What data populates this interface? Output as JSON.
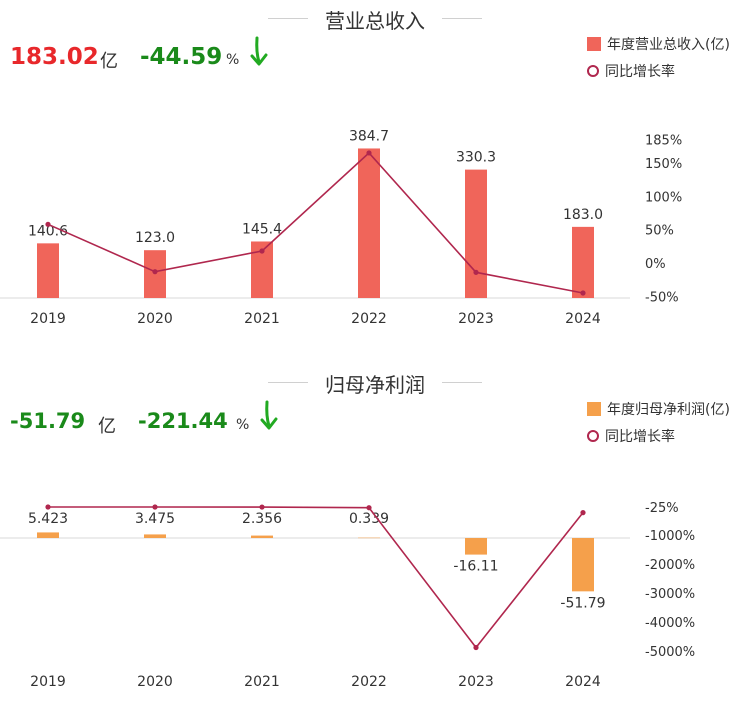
{
  "revenue_section": {
    "title": "营业总收入",
    "kpi_value": "183.02",
    "kpi_unit": "亿",
    "kpi_change": "-44.59",
    "kpi_change_unit": "%",
    "legend_bar": "年度营业总收入(亿)",
    "legend_line": "同比增长率"
  },
  "profit_section": {
    "title": "归母净利润",
    "kpi_value": "-51.79",
    "kpi_unit": "亿",
    "kpi_change": "-221.44",
    "kpi_change_unit": "%",
    "legend_bar": "年度归母净利润(亿)",
    "legend_line": "同比增长率"
  },
  "colors": {
    "revenue_bar": "#f0655a",
    "profit_bar": "#f5a04b",
    "line": "#b0274e",
    "kpi_red": "#e8282b",
    "kpi_green": "#1a8a1a",
    "arrow_green": "#22aa22"
  },
  "chart_data": [
    {
      "type": "bar",
      "categories": [
        "2019",
        "2020",
        "2021",
        "2022",
        "2023",
        "2024"
      ],
      "series": [
        {
          "name": "年度营业总收入(亿)",
          "type": "bar",
          "values": [
            140.6,
            123.0,
            145.4,
            384.7,
            330.3,
            183.0
          ],
          "labels": [
            "140.6",
            "123.0",
            "145.4",
            "384.7",
            "330.3",
            "183.0"
          ]
        },
        {
          "name": "同比增长率",
          "type": "line",
          "axis": "right",
          "values": [
            58,
            -13,
            18,
            165,
            -14,
            -45
          ]
        }
      ],
      "right_axis_ticks": [
        "185%",
        "150%",
        "100%",
        "50%",
        "0%",
        "-50%"
      ],
      "right_axis_tick_values": [
        185,
        150,
        100,
        50,
        0,
        -50
      ]
    },
    {
      "type": "bar",
      "categories": [
        "2019",
        "2020",
        "2021",
        "2022",
        "2023",
        "2024"
      ],
      "series": [
        {
          "name": "年度归母净利润(亿)",
          "type": "bar",
          "values": [
            5.423,
            3.475,
            2.356,
            0.339,
            -16.11,
            -51.79
          ],
          "labels": [
            "5.423",
            "3.475",
            "2.356",
            "0.339",
            "-16.11",
            "-51.79"
          ]
        },
        {
          "name": "同比增长率",
          "type": "line",
          "axis": "right",
          "values": [
            -25,
            -25,
            -27,
            -50,
            -4880,
            -221
          ]
        }
      ],
      "right_axis_ticks": [
        "-25%",
        "-1000%",
        "-2000%",
        "-3000%",
        "-4000%",
        "-5000%"
      ],
      "right_axis_tick_values": [
        -25,
        -1000,
        -2000,
        -3000,
        -4000,
        -5000
      ]
    }
  ]
}
